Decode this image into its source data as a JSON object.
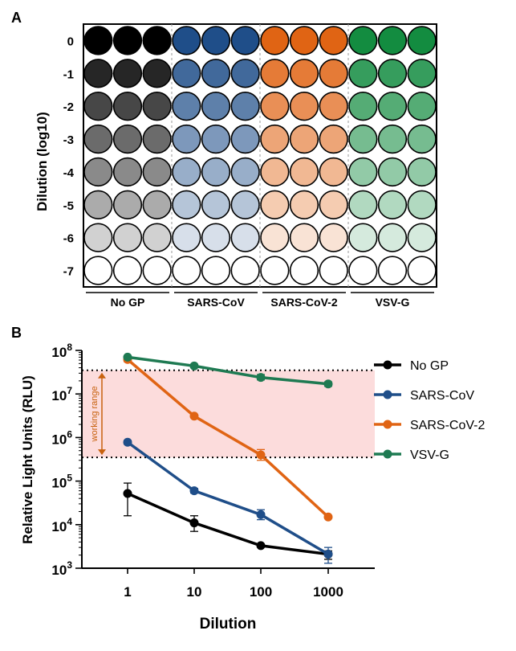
{
  "panel_a": {
    "label": "A",
    "ylabel": "Dilution (log10)",
    "rows": [
      "0",
      "-1",
      "-2",
      "-3",
      "-4",
      "-5",
      "-6",
      "-7"
    ],
    "groups": [
      {
        "name": "No GP",
        "color": "#000000"
      },
      {
        "name": "SARS-CoV",
        "color": "#1f4e89"
      },
      {
        "name": "SARS-CoV-2",
        "color": "#e06414"
      },
      {
        "name": "VSV-G",
        "color": "#138c40"
      }
    ],
    "wells_per_group": 3,
    "fill_levels": [
      1.0,
      0.85,
      0.72,
      0.58,
      0.46,
      0.33,
      0.18,
      0.0
    ]
  },
  "panel_b": {
    "label": "B",
    "working_range_label": "working range",
    "working_range": [
      350000,
      35000000
    ]
  },
  "chart_data": {
    "type": "line",
    "title": "",
    "xlabel": "Dilution",
    "ylabel": "Relative Light Units (RLU)",
    "x": [
      1,
      10,
      100,
      1000
    ],
    "x_tick_labels": [
      "1",
      "10",
      "100",
      "1000"
    ],
    "x_scale": "log",
    "y_scale": "log",
    "ylim": [
      1000,
      100000000
    ],
    "y_tick_labels": [
      {
        "base": "10",
        "exp": "3",
        "value": 1000
      },
      {
        "base": "10",
        "exp": "4",
        "value": 10000
      },
      {
        "base": "10",
        "exp": "5",
        "value": 100000
      },
      {
        "base": "10",
        "exp": "6",
        "value": 1000000
      },
      {
        "base": "10",
        "exp": "7",
        "value": 10000000
      },
      {
        "base": "10",
        "exp": "8",
        "value": 100000000
      }
    ],
    "legend_position": "right",
    "series": [
      {
        "name": "No GP",
        "color": "#000000",
        "values": [
          52000,
          11000,
          3300,
          2100
        ],
        "err_low": [
          16000,
          7000,
          3300,
          1600
        ],
        "err_high": [
          90000,
          16000,
          3300,
          2500
        ]
      },
      {
        "name": "SARS-CoV",
        "color": "#1f4e89",
        "values": [
          780000,
          60000,
          17000,
          2100
        ],
        "err_low": [
          700000,
          53000,
          13000,
          1300
        ],
        "err_high": [
          860000,
          68000,
          22000,
          3000
        ]
      },
      {
        "name": "SARS-CoV-2",
        "color": "#e06414",
        "values": [
          62000000,
          3100000,
          400000,
          15000
        ],
        "err_low": [
          55000000,
          2900000,
          300000,
          14000
        ],
        "err_high": [
          70000000,
          3300000,
          530000,
          16000
        ]
      },
      {
        "name": "VSV-G",
        "color": "#1e7a52",
        "values": [
          70000000,
          44000000,
          24000000,
          17000000
        ],
        "err_low": [
          66000000,
          41000000,
          21000000,
          15000000
        ],
        "err_high": [
          75000000,
          47000000,
          28000000,
          19000000
        ]
      }
    ]
  }
}
